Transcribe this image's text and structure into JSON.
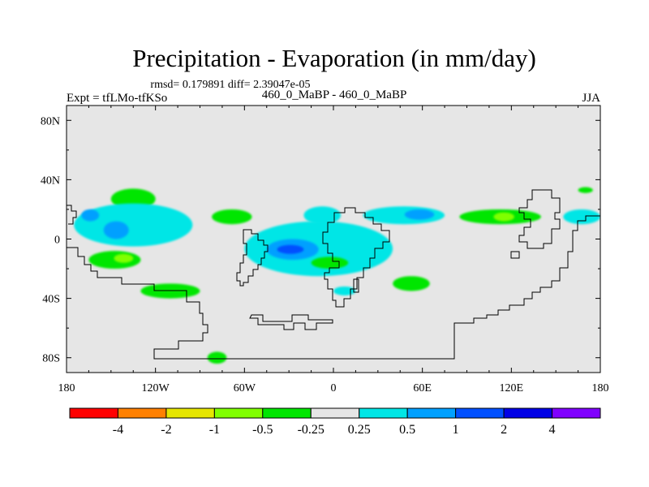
{
  "chart_data": {
    "type": "heatmap",
    "title": "Precipitation - Evaporation (in mm/day)",
    "stats_line": "rmsd= 0.179891 diff= 2.39047e-05",
    "left_label": "Expt = tfLMo-tfKSo",
    "center_label": "460_0_MaBP - 460_0_MaBP",
    "right_label": "JJA",
    "x_axis": {
      "range": [
        -180,
        180
      ],
      "ticks": [
        -180,
        -120,
        -60,
        0,
        60,
        120,
        180
      ],
      "tick_labels": [
        "180",
        "120W",
        "60W",
        "0",
        "60E",
        "120E",
        "180"
      ]
    },
    "y_axis": {
      "range": [
        -90,
        90
      ],
      "ticks": [
        80,
        40,
        0,
        -40,
        -80
      ],
      "tick_labels": [
        "80N",
        "40N",
        "0",
        "40S",
        "80S"
      ]
    },
    "background_color": "#e6e6e6",
    "colorbar": {
      "colors": [
        "#ff0000",
        "#ff8000",
        "#e6e600",
        "#80ff00",
        "#00e600",
        "#e6e6e6",
        "#00e6e6",
        "#00a0ff",
        "#0050ff",
        "#0000e6",
        "#8000ff"
      ],
      "labels": [
        "-4",
        "-2",
        "-1",
        "-0.5",
        "-0.25",
        "0.25",
        "0.5",
        "1",
        "2",
        "4"
      ]
    },
    "anomaly_regions": [
      {
        "level": "-0.5",
        "color": "#80ff00",
        "lon": [
          -145,
          -128
        ],
        "lat": [
          25,
          32
        ]
      },
      {
        "level": "-0.25",
        "color": "#00e600",
        "lon": [
          -150,
          -120
        ],
        "lat": [
          20,
          34
        ]
      },
      {
        "level": "0.25",
        "color": "#00e6e6",
        "lon": [
          -175,
          -95
        ],
        "lat": [
          -5,
          24
        ]
      },
      {
        "level": "0.5",
        "color": "#00a0ff",
        "lon": [
          -155,
          -138
        ],
        "lat": [
          0,
          12
        ]
      },
      {
        "level": "0.5",
        "color": "#00a0ff",
        "lon": [
          -170,
          -158
        ],
        "lat": [
          12,
          20
        ]
      },
      {
        "level": "-0.25",
        "color": "#00e600",
        "lon": [
          -165,
          -130
        ],
        "lat": [
          -20,
          -8
        ]
      },
      {
        "level": "-0.5",
        "color": "#80ff00",
        "lon": [
          -148,
          -135
        ],
        "lat": [
          -16,
          -10
        ]
      },
      {
        "level": "-0.25",
        "color": "#00e600",
        "lon": [
          -82,
          -55
        ],
        "lat": [
          10,
          20
        ]
      },
      {
        "level": "-0.25",
        "color": "#00e600",
        "lon": [
          -130,
          -90
        ],
        "lat": [
          -40,
          -30
        ]
      },
      {
        "level": "0.25",
        "color": "#00e6e6",
        "lon": [
          -60,
          40
        ],
        "lat": [
          -25,
          12
        ]
      },
      {
        "level": "0.5",
        "color": "#00a0ff",
        "lon": [
          -45,
          -10
        ],
        "lat": [
          -14,
          0
        ]
      },
      {
        "level": "1",
        "color": "#0050ff",
        "lon": [
          -38,
          -20
        ],
        "lat": [
          -10,
          -4
        ]
      },
      {
        "level": "-0.25",
        "color": "#00e600",
        "lon": [
          -15,
          10
        ],
        "lat": [
          -20,
          -12
        ]
      },
      {
        "level": "0.25",
        "color": "#00e6e6",
        "lon": [
          0,
          15
        ],
        "lat": [
          -38,
          -32
        ]
      },
      {
        "level": "0.25",
        "color": "#00e6e6",
        "lon": [
          -20,
          5
        ],
        "lat": [
          10,
          22
        ]
      },
      {
        "level": "0.25",
        "color": "#00e6e6",
        "lon": [
          20,
          75
        ],
        "lat": [
          10,
          22
        ]
      },
      {
        "level": "0.5",
        "color": "#00a0ff",
        "lon": [
          48,
          68
        ],
        "lat": [
          13,
          20
        ]
      },
      {
        "level": "-0.25",
        "color": "#00e600",
        "lon": [
          85,
          140
        ],
        "lat": [
          10,
          20
        ]
      },
      {
        "level": "-0.5",
        "color": "#80ff00",
        "lon": [
          108,
          122
        ],
        "lat": [
          12,
          18
        ]
      },
      {
        "level": "-0.25",
        "color": "#00e600",
        "lon": [
          40,
          65
        ],
        "lat": [
          -35,
          -25
        ]
      },
      {
        "level": "-0.25",
        "color": "#00e600",
        "lon": [
          -85,
          -72
        ],
        "lat": [
          -84,
          -76
        ]
      },
      {
        "level": "0.25",
        "color": "#00e6e6",
        "lon": [
          155,
          180
        ],
        "lat": [
          10,
          20
        ]
      },
      {
        "level": "-0.25",
        "color": "#00e600",
        "lon": [
          165,
          175
        ],
        "lat": [
          31,
          35
        ]
      }
    ]
  }
}
